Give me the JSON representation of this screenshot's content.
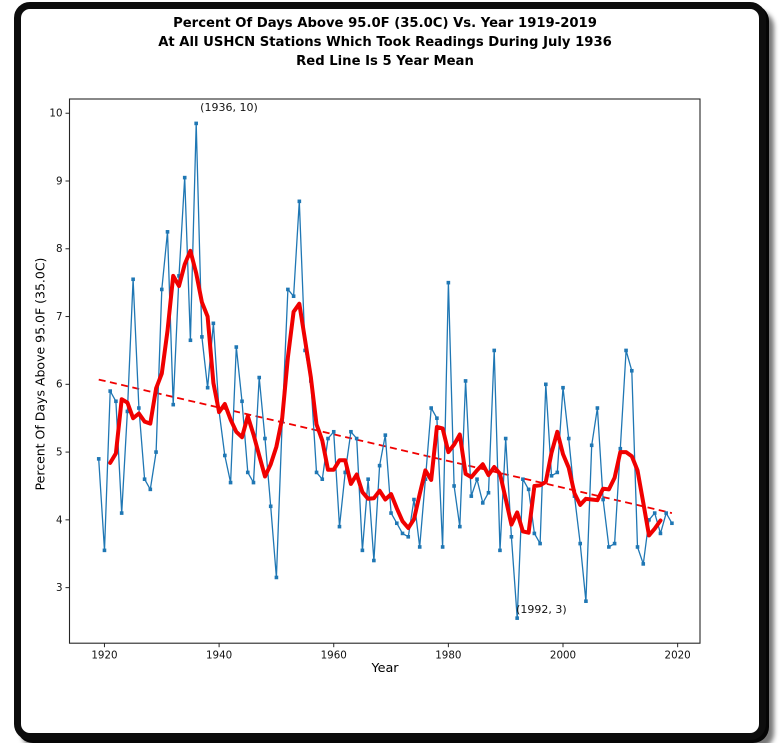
{
  "window": {
    "frame_color": "#0d0d0d",
    "background": "#ffffff"
  },
  "title_lines": [
    "Percent Of Days Above 95.0F (35.0C) Vs. Year 1919-2019",
    "At All USHCN Stations Which Took Readings During July 1936",
    "Red Line Is 5 Year Mean"
  ],
  "chart_data": {
    "type": "line",
    "title": "Percent Of Days Above 95.0F (35.0C) Vs. Year 1919-2019 At All USHCN Stations Which Took Readings During July 1936 Red Line Is 5 Year Mean",
    "xlabel": "Year",
    "ylabel": "Percent Of Days Above 95.0F (35.0C)",
    "x_ticks": [
      1920,
      1940,
      1960,
      1980,
      2000,
      2020
    ],
    "y_ticks": [
      3,
      4,
      5,
      6,
      7,
      8,
      9,
      10
    ],
    "xlim": [
      1913.9,
      2023.9
    ],
    "ylim": [
      2.18,
      10.21
    ],
    "grid": false,
    "legend_position": "none",
    "colors": {
      "annual": "#1f77b4",
      "mean": "#f00000",
      "trend": "#f00000",
      "spine": "#262626",
      "text": "#111111"
    },
    "x": [
      1919,
      1920,
      1921,
      1922,
      1923,
      1924,
      1925,
      1926,
      1927,
      1928,
      1929,
      1930,
      1931,
      1932,
      1933,
      1934,
      1935,
      1936,
      1937,
      1938,
      1939,
      1940,
      1941,
      1942,
      1943,
      1944,
      1945,
      1946,
      1947,
      1948,
      1949,
      1950,
      1951,
      1952,
      1953,
      1954,
      1955,
      1956,
      1957,
      1958,
      1959,
      1960,
      1961,
      1962,
      1963,
      1964,
      1965,
      1966,
      1967,
      1968,
      1969,
      1970,
      1971,
      1972,
      1973,
      1974,
      1975,
      1976,
      1977,
      1978,
      1979,
      1980,
      1981,
      1982,
      1983,
      1984,
      1985,
      1986,
      1987,
      1988,
      1989,
      1990,
      1991,
      1992,
      1993,
      1994,
      1995,
      1996,
      1997,
      1998,
      1999,
      2000,
      2001,
      2002,
      2003,
      2004,
      2005,
      2006,
      2007,
      2008,
      2009,
      2010,
      2011,
      2012,
      2013,
      2014,
      2015,
      2016,
      2017,
      2018,
      2019
    ],
    "series": [
      {
        "name": "annual-percent-of-days",
        "style": "line+square-markers",
        "color": "#1f77b4",
        "values": [
          4.9,
          3.55,
          5.9,
          5.75,
          4.1,
          5.6,
          7.55,
          5.65,
          4.6,
          4.45,
          5.0,
          7.4,
          8.25,
          5.7,
          7.6,
          9.05,
          6.65,
          9.85,
          6.7,
          5.95,
          6.9,
          5.6,
          4.95,
          4.55,
          6.55,
          5.75,
          4.7,
          4.55,
          6.1,
          5.2,
          4.2,
          3.15,
          5.45,
          7.4,
          7.3,
          8.7,
          6.5,
          6.05,
          4.7,
          4.6,
          5.2,
          5.3,
          3.9,
          4.7,
          5.3,
          5.2,
          3.55,
          4.6,
          3.4,
          4.8,
          5.25,
          4.1,
          3.95,
          3.8,
          3.75,
          4.3,
          3.6,
          4.6,
          5.65,
          5.5,
          3.6,
          7.5,
          4.5,
          3.9,
          6.05,
          4.35,
          4.6,
          4.25,
          4.4,
          6.5,
          3.55,
          5.2,
          3.75,
          2.55,
          4.6,
          4.45,
          3.8,
          3.65,
          6.0,
          4.65,
          4.7,
          5.95,
          5.2,
          4.35,
          3.65,
          2.8,
          5.1,
          5.65,
          4.3,
          3.6,
          3.65,
          5.05,
          6.5,
          6.2,
          3.6,
          3.35,
          4.0,
          4.1,
          3.8,
          4.1,
          3.95
        ]
      },
      {
        "name": "5-year-mean",
        "style": "thick-line",
        "color": "#f00000",
        "derived": "centered 5-year moving average of annual series (1921-2017)"
      },
      {
        "name": "linear-trend",
        "style": "dashed-line",
        "color": "#f00000",
        "x": [
          1919,
          2019
        ],
        "values": [
          6.07,
          4.1
        ]
      }
    ],
    "annotations": [
      {
        "text": "(1936, 10)",
        "x": 1936,
        "y": 10
      },
      {
        "text": "(1992, 3)",
        "x": 1992,
        "y": 3
      }
    ]
  }
}
